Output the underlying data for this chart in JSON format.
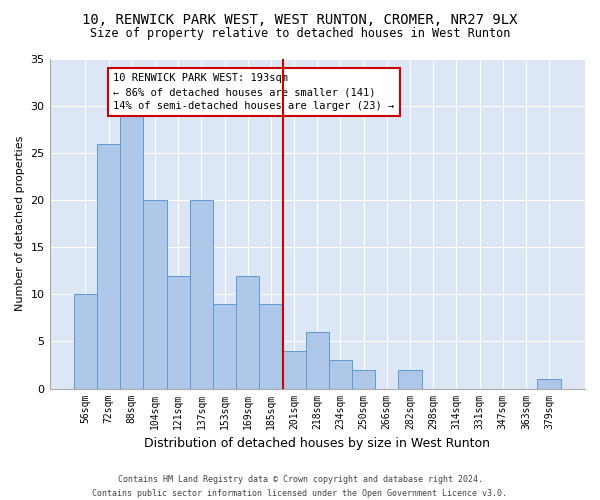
{
  "title_line1": "10, RENWICK PARK WEST, WEST RUNTON, CROMER, NR27 9LX",
  "title_line2": "Size of property relative to detached houses in West Runton",
  "xlabel": "Distribution of detached houses by size in West Runton",
  "ylabel": "Number of detached properties",
  "categories": [
    "56sqm",
    "72sqm",
    "88sqm",
    "104sqm",
    "121sqm",
    "137sqm",
    "153sqm",
    "169sqm",
    "185sqm",
    "201sqm",
    "218sqm",
    "234sqm",
    "250sqm",
    "266sqm",
    "282sqm",
    "298sqm",
    "314sqm",
    "331sqm",
    "347sqm",
    "363sqm",
    "379sqm"
  ],
  "values": [
    10,
    26,
    29,
    20,
    12,
    20,
    9,
    12,
    9,
    4,
    6,
    3,
    2,
    0,
    2,
    0,
    0,
    0,
    0,
    0,
    1
  ],
  "bar_color": "#aec6e8",
  "bar_edgecolor": "#5b9bd5",
  "vline_color": "#cc0000",
  "annotation_text": "10 RENWICK PARK WEST: 193sqm\n← 86% of detached houses are smaller (141)\n14% of semi-detached houses are larger (23) →",
  "annotation_box_color": "#ffffff",
  "annotation_box_edgecolor": "#cc0000",
  "ylim": [
    0,
    35
  ],
  "yticks": [
    0,
    5,
    10,
    15,
    20,
    25,
    30,
    35
  ],
  "background_color": "#dce6f5",
  "grid_color": "#ffffff",
  "fig_background": "#ffffff",
  "footer_line1": "Contains HM Land Registry data © Crown copyright and database right 2024.",
  "footer_line2": "Contains public sector information licensed under the Open Government Licence v3.0."
}
